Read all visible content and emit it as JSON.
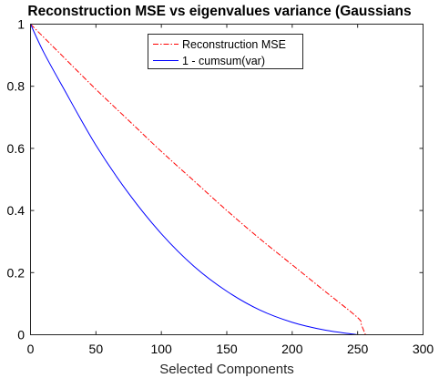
{
  "chart_data": {
    "type": "line",
    "title": "Reconstruction MSE vs eigenvalues variance (Gaussians",
    "xlabel": "Selected Components",
    "ylabel": "",
    "xlim": [
      0,
      300
    ],
    "ylim": [
      0,
      1
    ],
    "xticks": [
      "0",
      "50",
      "100",
      "150",
      "200",
      "250",
      "300"
    ],
    "yticks": [
      "0",
      "0.2",
      "0.4",
      "0.6",
      "0.8",
      "1"
    ],
    "grid": false,
    "legend_position": "top-center",
    "series": [
      {
        "name": "Reconstruction MSE",
        "color": "#ff0000",
        "style": "dash-dot",
        "x": [
          0,
          25,
          50,
          75,
          100,
          125,
          150,
          175,
          200,
          225,
          250,
          253,
          256
        ],
        "y": [
          1.0,
          0.895,
          0.79,
          0.69,
          0.59,
          0.495,
          0.4,
          0.31,
          0.225,
          0.14,
          0.055,
          0.03,
          0.0
        ]
      },
      {
        "name": "1 - cumsum(var)",
        "color": "#0000ff",
        "style": "solid",
        "x": [
          0,
          10,
          25,
          50,
          75,
          100,
          125,
          150,
          175,
          200,
          225,
          250
        ],
        "y": [
          1.0,
          0.91,
          0.795,
          0.61,
          0.455,
          0.325,
          0.22,
          0.14,
          0.08,
          0.04,
          0.015,
          0.0
        ]
      }
    ]
  }
}
